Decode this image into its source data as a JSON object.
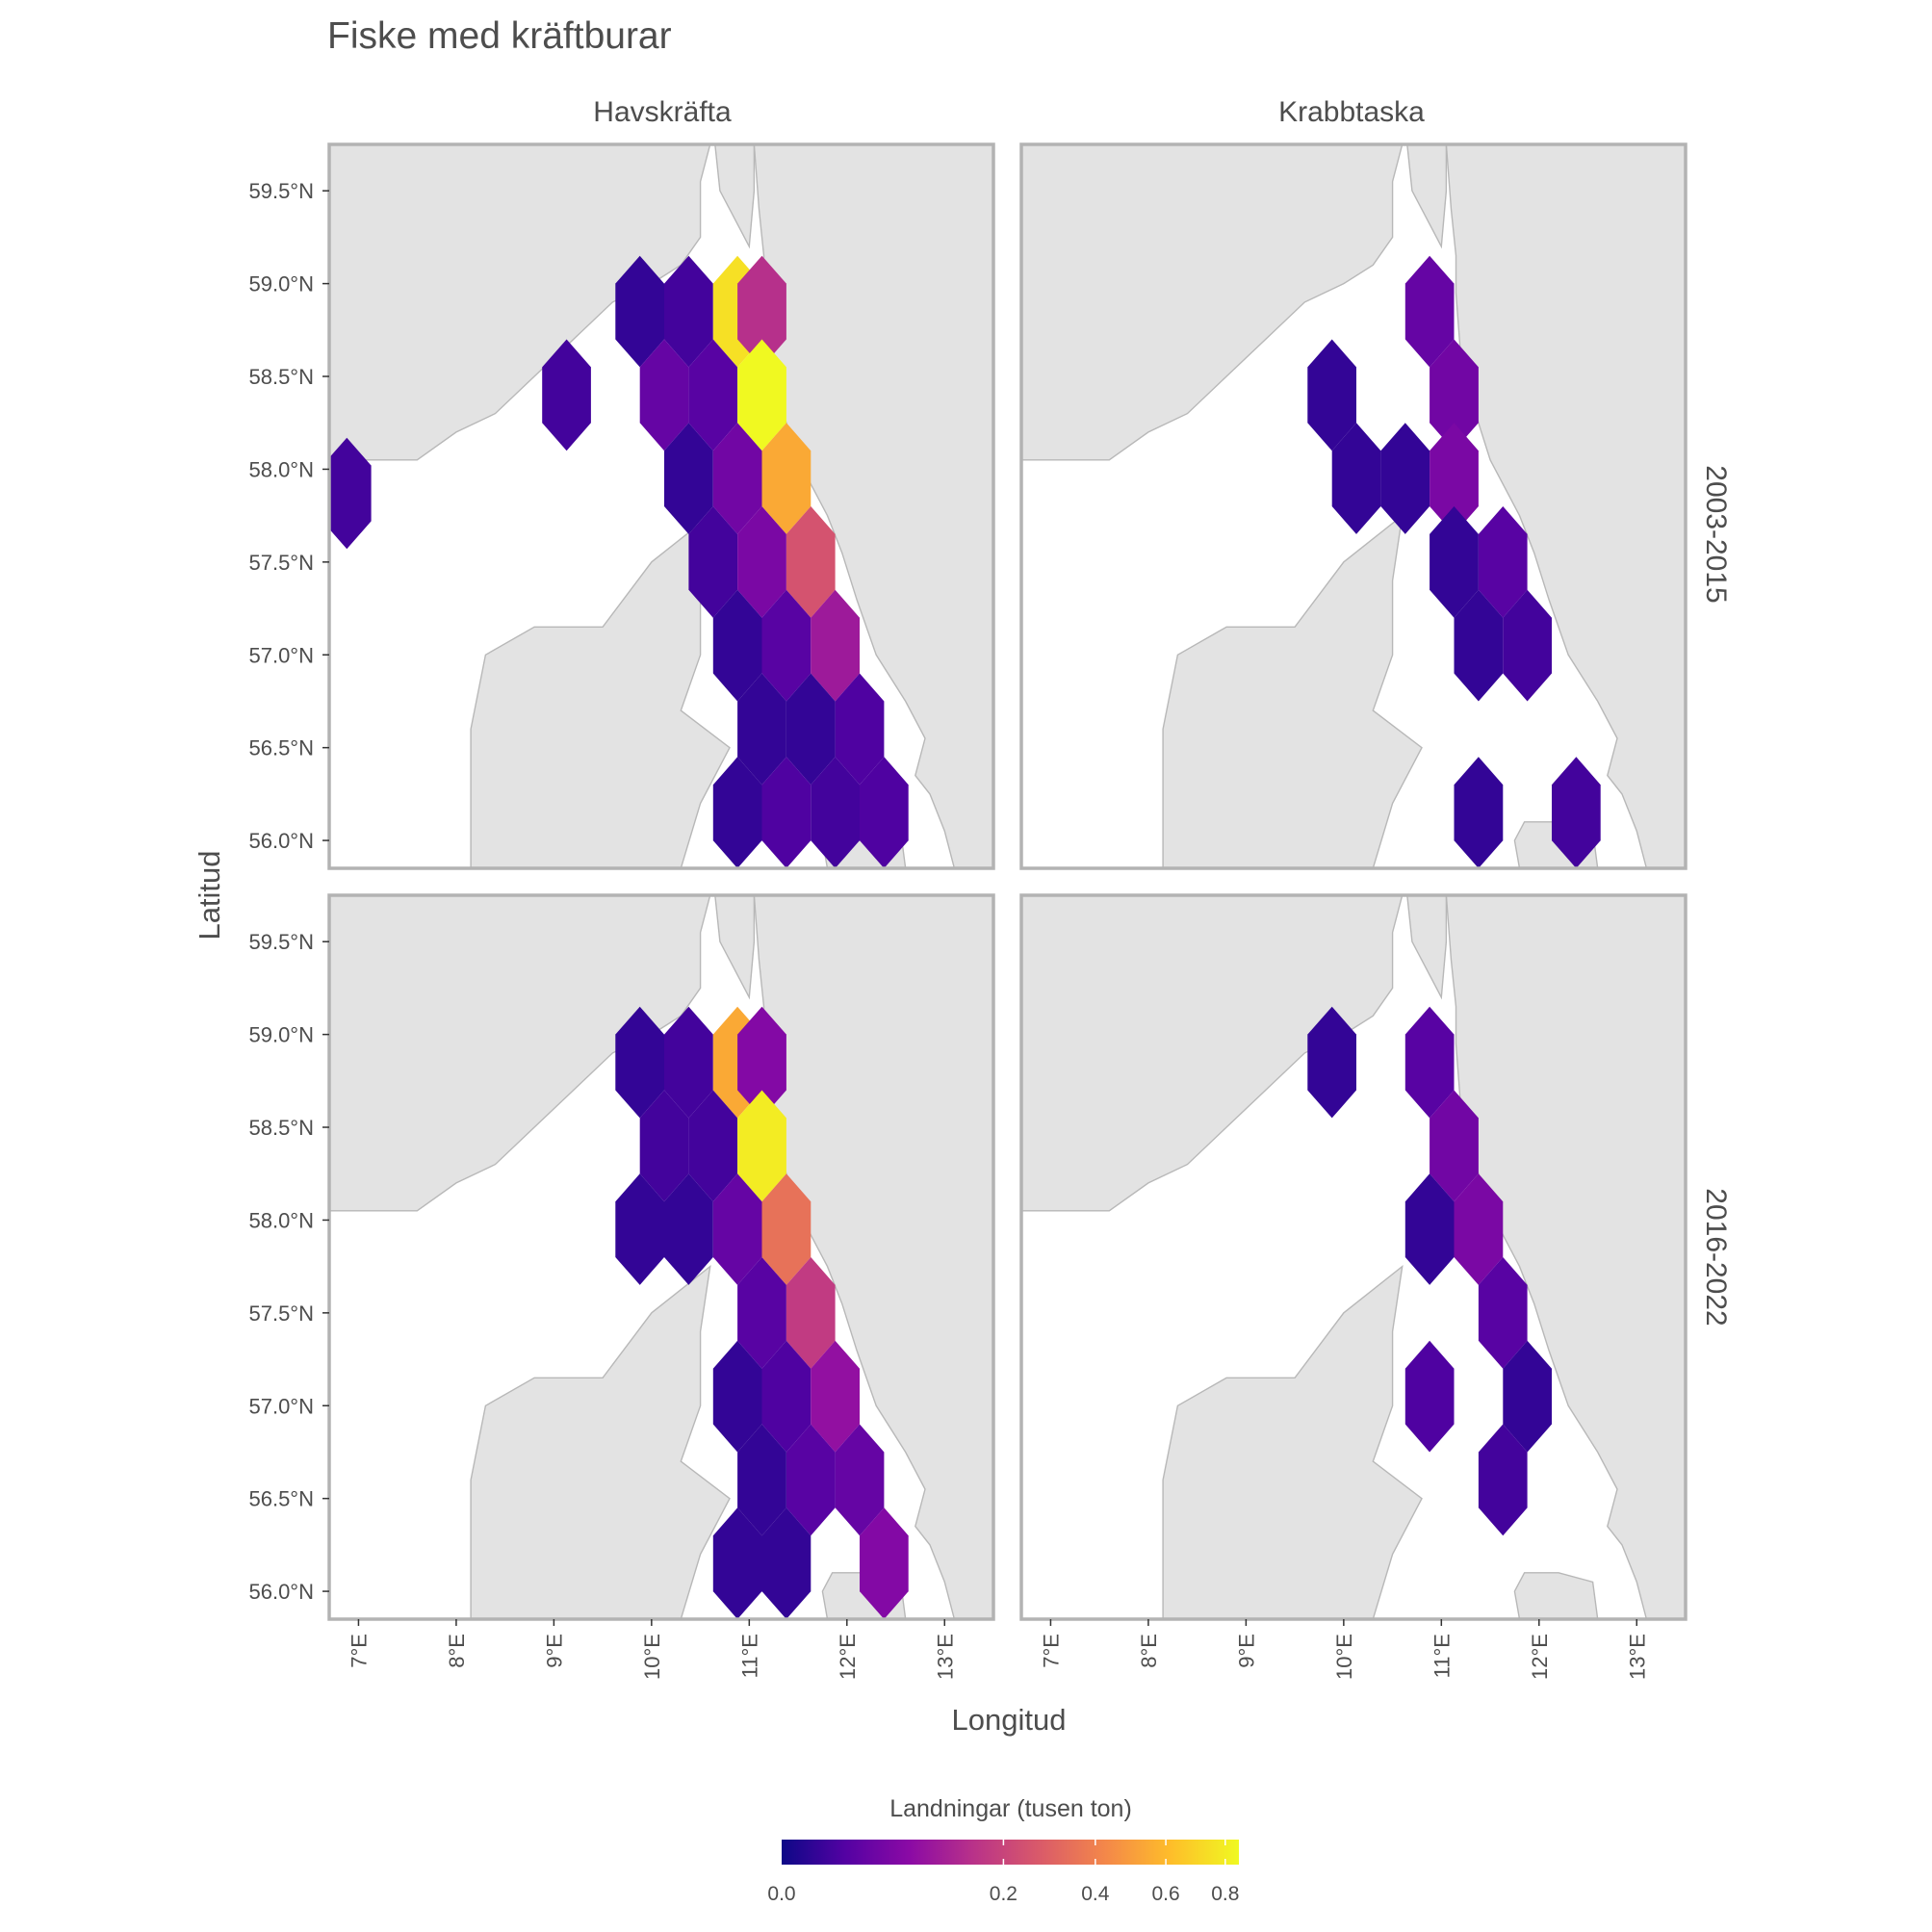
{
  "title": "Fiske med kräftburar",
  "facets": {
    "columns": [
      "Havskräfta",
      "Krabbtaska"
    ],
    "rows": [
      "2003-2015",
      "2016-2022"
    ]
  },
  "axes": {
    "x_title": "Longitud",
    "y_title": "Latitud",
    "x_ticks": [
      "7°E",
      "8°E",
      "9°E",
      "10°E",
      "11°E",
      "12°E",
      "13°E"
    ],
    "y_ticks": [
      "59.5°N",
      "59.0°N",
      "58.5°N",
      "58.0°N",
      "57.5°N",
      "57.0°N",
      "56.5°N",
      "56.0°N"
    ]
  },
  "legend": {
    "title": "Landningar (tusen ton)",
    "ticks": [
      "0.0",
      "0.2",
      "0.4",
      "0.6",
      "0.8"
    ],
    "palette": [
      "#0d0887",
      "#5402a3",
      "#8b0aa5",
      "#b93289",
      "#db5c68",
      "#f48849",
      "#febd2a",
      "#f0f921"
    ]
  },
  "chart_data": {
    "type": "hexbin-map",
    "x_range": [
      6.7,
      13.5
    ],
    "y_range": [
      55.85,
      59.75
    ],
    "color_scale": "plasma (sqrt)",
    "color_range": [
      0.0,
      0.85
    ],
    "panels": [
      {
        "species": "Havskräfta",
        "period": "2003-2015",
        "cells": [
          {
            "lon": 6.88,
            "lat": 57.87,
            "value": 0.01
          },
          {
            "lon": 9.13,
            "lat": 58.4,
            "value": 0.01
          },
          {
            "lon": 9.88,
            "lat": 58.85,
            "value": 0.005
          },
          {
            "lon": 10.38,
            "lat": 58.85,
            "value": 0.01
          },
          {
            "lon": 10.88,
            "lat": 58.85,
            "value": 0.75
          },
          {
            "lon": 11.13,
            "lat": 58.85,
            "value": 0.15
          },
          {
            "lon": 10.13,
            "lat": 58.4,
            "value": 0.03
          },
          {
            "lon": 10.63,
            "lat": 58.4,
            "value": 0.02
          },
          {
            "lon": 11.13,
            "lat": 58.4,
            "value": 0.85
          },
          {
            "lon": 10.38,
            "lat": 57.95,
            "value": 0.005
          },
          {
            "lon": 10.88,
            "lat": 57.95,
            "value": 0.04
          },
          {
            "lon": 11.38,
            "lat": 57.95,
            "value": 0.55
          },
          {
            "lon": 10.63,
            "lat": 57.5,
            "value": 0.01
          },
          {
            "lon": 11.13,
            "lat": 57.5,
            "value": 0.05
          },
          {
            "lon": 11.63,
            "lat": 57.5,
            "value": 0.25
          },
          {
            "lon": 10.88,
            "lat": 57.05,
            "value": 0.005
          },
          {
            "lon": 11.38,
            "lat": 57.05,
            "value": 0.02
          },
          {
            "lon": 11.88,
            "lat": 57.05,
            "value": 0.1
          },
          {
            "lon": 11.13,
            "lat": 56.6,
            "value": 0.005
          },
          {
            "lon": 11.63,
            "lat": 56.6,
            "value": 0.005
          },
          {
            "lon": 12.13,
            "lat": 56.6,
            "value": 0.015
          },
          {
            "lon": 10.88,
            "lat": 56.15,
            "value": 0.005
          },
          {
            "lon": 11.38,
            "lat": 56.15,
            "value": 0.015
          },
          {
            "lon": 11.88,
            "lat": 56.15,
            "value": 0.01
          },
          {
            "lon": 12.38,
            "lat": 56.15,
            "value": 0.015
          }
        ]
      },
      {
        "species": "Krabbtaska",
        "period": "2003-2015",
        "cells": [
          {
            "lon": 10.88,
            "lat": 58.85,
            "value": 0.03
          },
          {
            "lon": 9.88,
            "lat": 58.4,
            "value": 0.005
          },
          {
            "lon": 11.13,
            "lat": 58.4,
            "value": 0.04
          },
          {
            "lon": 10.13,
            "lat": 57.95,
            "value": 0.005
          },
          {
            "lon": 10.63,
            "lat": 57.95,
            "value": 0.005
          },
          {
            "lon": 11.13,
            "lat": 57.95,
            "value": 0.05
          },
          {
            "lon": 11.13,
            "lat": 57.5,
            "value": 0.005
          },
          {
            "lon": 11.63,
            "lat": 57.5,
            "value": 0.02
          },
          {
            "lon": 11.38,
            "lat": 57.05,
            "value": 0.005
          },
          {
            "lon": 11.88,
            "lat": 57.05,
            "value": 0.01
          },
          {
            "lon": 11.38,
            "lat": 56.15,
            "value": 0.005
          },
          {
            "lon": 12.38,
            "lat": 56.15,
            "value": 0.01
          }
        ]
      },
      {
        "species": "Havskräfta",
        "period": "2016-2022",
        "cells": [
          {
            "lon": 9.88,
            "lat": 58.85,
            "value": 0.005
          },
          {
            "lon": 10.38,
            "lat": 58.85,
            "value": 0.01
          },
          {
            "lon": 10.88,
            "lat": 58.85,
            "value": 0.55
          },
          {
            "lon": 11.13,
            "lat": 58.85,
            "value": 0.06
          },
          {
            "lon": 10.13,
            "lat": 58.4,
            "value": 0.01
          },
          {
            "lon": 10.63,
            "lat": 58.4,
            "value": 0.01
          },
          {
            "lon": 11.13,
            "lat": 58.4,
            "value": 0.8
          },
          {
            "lon": 9.88,
            "lat": 57.95,
            "value": 0.005
          },
          {
            "lon": 10.38,
            "lat": 57.95,
            "value": 0.005
          },
          {
            "lon": 10.88,
            "lat": 57.95,
            "value": 0.03
          },
          {
            "lon": 11.38,
            "lat": 57.95,
            "value": 0.35
          },
          {
            "lon": 11.13,
            "lat": 57.5,
            "value": 0.02
          },
          {
            "lon": 11.63,
            "lat": 57.5,
            "value": 0.18
          },
          {
            "lon": 10.88,
            "lat": 57.05,
            "value": 0.005
          },
          {
            "lon": 11.38,
            "lat": 57.05,
            "value": 0.015
          },
          {
            "lon": 11.88,
            "lat": 57.05,
            "value": 0.08
          },
          {
            "lon": 11.13,
            "lat": 56.6,
            "value": 0.005
          },
          {
            "lon": 11.63,
            "lat": 56.6,
            "value": 0.02
          },
          {
            "lon": 12.13,
            "lat": 56.6,
            "value": 0.03
          },
          {
            "lon": 10.88,
            "lat": 56.15,
            "value": 0.005
          },
          {
            "lon": 11.38,
            "lat": 56.15,
            "value": 0.005
          },
          {
            "lon": 12.38,
            "lat": 56.15,
            "value": 0.06
          }
        ]
      },
      {
        "species": "Krabbtaska",
        "period": "2016-2022",
        "cells": [
          {
            "lon": 9.88,
            "lat": 58.85,
            "value": 0.005
          },
          {
            "lon": 10.88,
            "lat": 58.85,
            "value": 0.02
          },
          {
            "lon": 11.13,
            "lat": 58.4,
            "value": 0.04
          },
          {
            "lon": 10.88,
            "lat": 57.95,
            "value": 0.005
          },
          {
            "lon": 11.38,
            "lat": 57.95,
            "value": 0.05
          },
          {
            "lon": 11.63,
            "lat": 57.5,
            "value": 0.02
          },
          {
            "lon": 10.88,
            "lat": 57.05,
            "value": 0.015
          },
          {
            "lon": 11.88,
            "lat": 57.05,
            "value": 0.005
          },
          {
            "lon": 11.63,
            "lat": 56.6,
            "value": 0.01
          }
        ]
      }
    ]
  }
}
